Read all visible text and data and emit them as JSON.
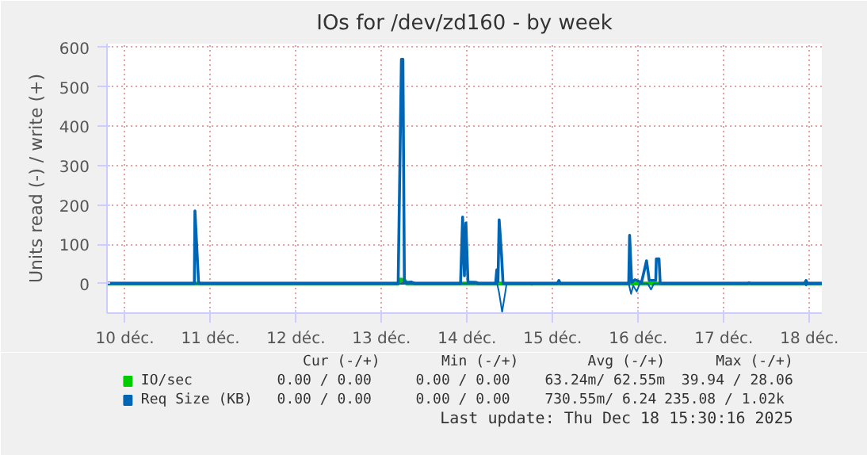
{
  "chart_data": {
    "type": "line",
    "title": "IOs for /dev/zd160 - by week",
    "ylabel": "Units read (-) / write (+)",
    "xlim": [
      "2025-12-09T19:00",
      "2025-12-18T03:30"
    ],
    "ylim": [
      -75,
      610
    ],
    "xticks": [
      {
        "value": "2025-12-10",
        "label": "10 déc."
      },
      {
        "value": "2025-12-11",
        "label": "11 déc."
      },
      {
        "value": "2025-12-12",
        "label": "12 déc."
      },
      {
        "value": "2025-12-13",
        "label": "13 déc."
      },
      {
        "value": "2025-12-14",
        "label": "14 déc."
      },
      {
        "value": "2025-12-15",
        "label": "15 déc."
      },
      {
        "value": "2025-12-16",
        "label": "16 déc."
      },
      {
        "value": "2025-12-17",
        "label": "17 déc."
      },
      {
        "value": "2025-12-18",
        "label": "18 déc."
      }
    ],
    "yticks": [
      0,
      100,
      200,
      300,
      400,
      500,
      600
    ],
    "grid": true,
    "legend": "bottom",
    "ref_lines": [
      {
        "axis": "y",
        "value": 0,
        "color": "#000000"
      }
    ],
    "series": [
      {
        "name": "IO/sec",
        "color": "#00cc00",
        "x": [
          "2025-12-09T19:00",
          "2025-12-13T04:40",
          "2025-12-13T05:20",
          "2025-12-13T06:25",
          "2025-12-13T07:05",
          "2025-12-18T03:30"
        ],
        "values": [
          0,
          0,
          10,
          8,
          0,
          0
        ]
      },
      {
        "name": "Req Size (KB)",
        "color": "#0066b3",
        "x": [
          "2025-12-09T19:00",
          "2025-12-10T19:30",
          "2025-12-10T19:40",
          "2025-12-10T20:40",
          "2025-12-10T21:05",
          "2025-12-13T04:40",
          "2025-12-13T05:35",
          "2025-12-13T06:00",
          "2025-12-13T06:25",
          "2025-12-13T07:05",
          "2025-12-13T08:25",
          "2025-12-13T09:20",
          "2025-12-13T22:10",
          "2025-12-13T22:45",
          "2025-12-13T23:15",
          "2025-12-13T23:40",
          "2025-12-14T00:15",
          "2025-12-14T02:40",
          "2025-12-14T03:05",
          "2025-12-14T08:00",
          "2025-12-14T08:20",
          "2025-12-14T08:40",
          "2025-12-14T09:00",
          "2025-12-14T09:40",
          "2025-12-14T10:05",
          "2025-12-15T01:20",
          "2025-12-15T01:45",
          "2025-12-15T02:10",
          "2025-12-15T21:20",
          "2025-12-15T21:35",
          "2025-12-15T22:10",
          "2025-12-15T23:05",
          "2025-12-16T00:55",
          "2025-12-16T02:20",
          "2025-12-16T03:05",
          "2025-12-16T04:55",
          "2025-12-16T05:05",
          "2025-12-16T05:50",
          "2025-12-16T06:10",
          "2025-12-17T06:40",
          "2025-12-17T07:05",
          "2025-12-17T07:30",
          "2025-12-17T22:40",
          "2025-12-17T23:05",
          "2025-12-17T23:30",
          "2025-12-18T03:30"
        ],
        "values": [
          0,
          0,
          185,
          5,
          0,
          0,
          570,
          570,
          5,
          3,
          4,
          0,
          0,
          169,
          20,
          154,
          4,
          3,
          0,
          0,
          35,
          5,
          162,
          73,
          0,
          0,
          8,
          0,
          0,
          123,
          3,
          10,
          3,
          58,
          8,
          8,
          63,
          63,
          0,
          0,
          2,
          0,
          0,
          8,
          0,
          0
        ]
      },
      {
        "color": "#0066b3",
        "x": [
          "2025-12-09T19:00",
          "2025-12-14T08:25",
          "2025-12-14T08:55",
          "2025-12-14T09:50",
          "2025-12-14T10:40",
          "2025-12-14T11:05",
          "2025-12-14T17:45",
          "2025-12-14T18:10",
          "2025-12-14T18:35",
          "2025-12-15T21:20",
          "2025-12-15T22:00",
          "2025-12-15T22:35",
          "2025-12-15T23:35",
          "2025-12-16T00:25",
          "2025-12-16T02:40",
          "2025-12-16T03:35",
          "2025-12-16T04:25",
          "2025-12-17T22:40",
          "2025-12-17T23:05",
          "2025-12-17T23:30",
          "2025-12-18T03:30"
        ],
        "values": [
          0,
          0,
          -20,
          -72,
          -25,
          0,
          0,
          -3,
          0,
          0,
          -26,
          -5,
          -20,
          0,
          0,
          -15,
          0,
          0,
          -5,
          0,
          0
        ]
      }
    ],
    "annotations": [
      "Cur (-/+)",
      "Min (-/+)",
      "Avg (-/+)",
      "Max (-/+)",
      "0.00 /  0.00",
      "0.00 /  0.00",
      "63.24m/ 62.55m",
      "39.94 / 28.06",
      "0.00 /  0.00",
      "0.00 /  0.00",
      "730.55m/  6.24",
      "235.08 /  1.02k",
      "Last update: Thu Dec 18 15:30:16 2025"
    ]
  }
}
